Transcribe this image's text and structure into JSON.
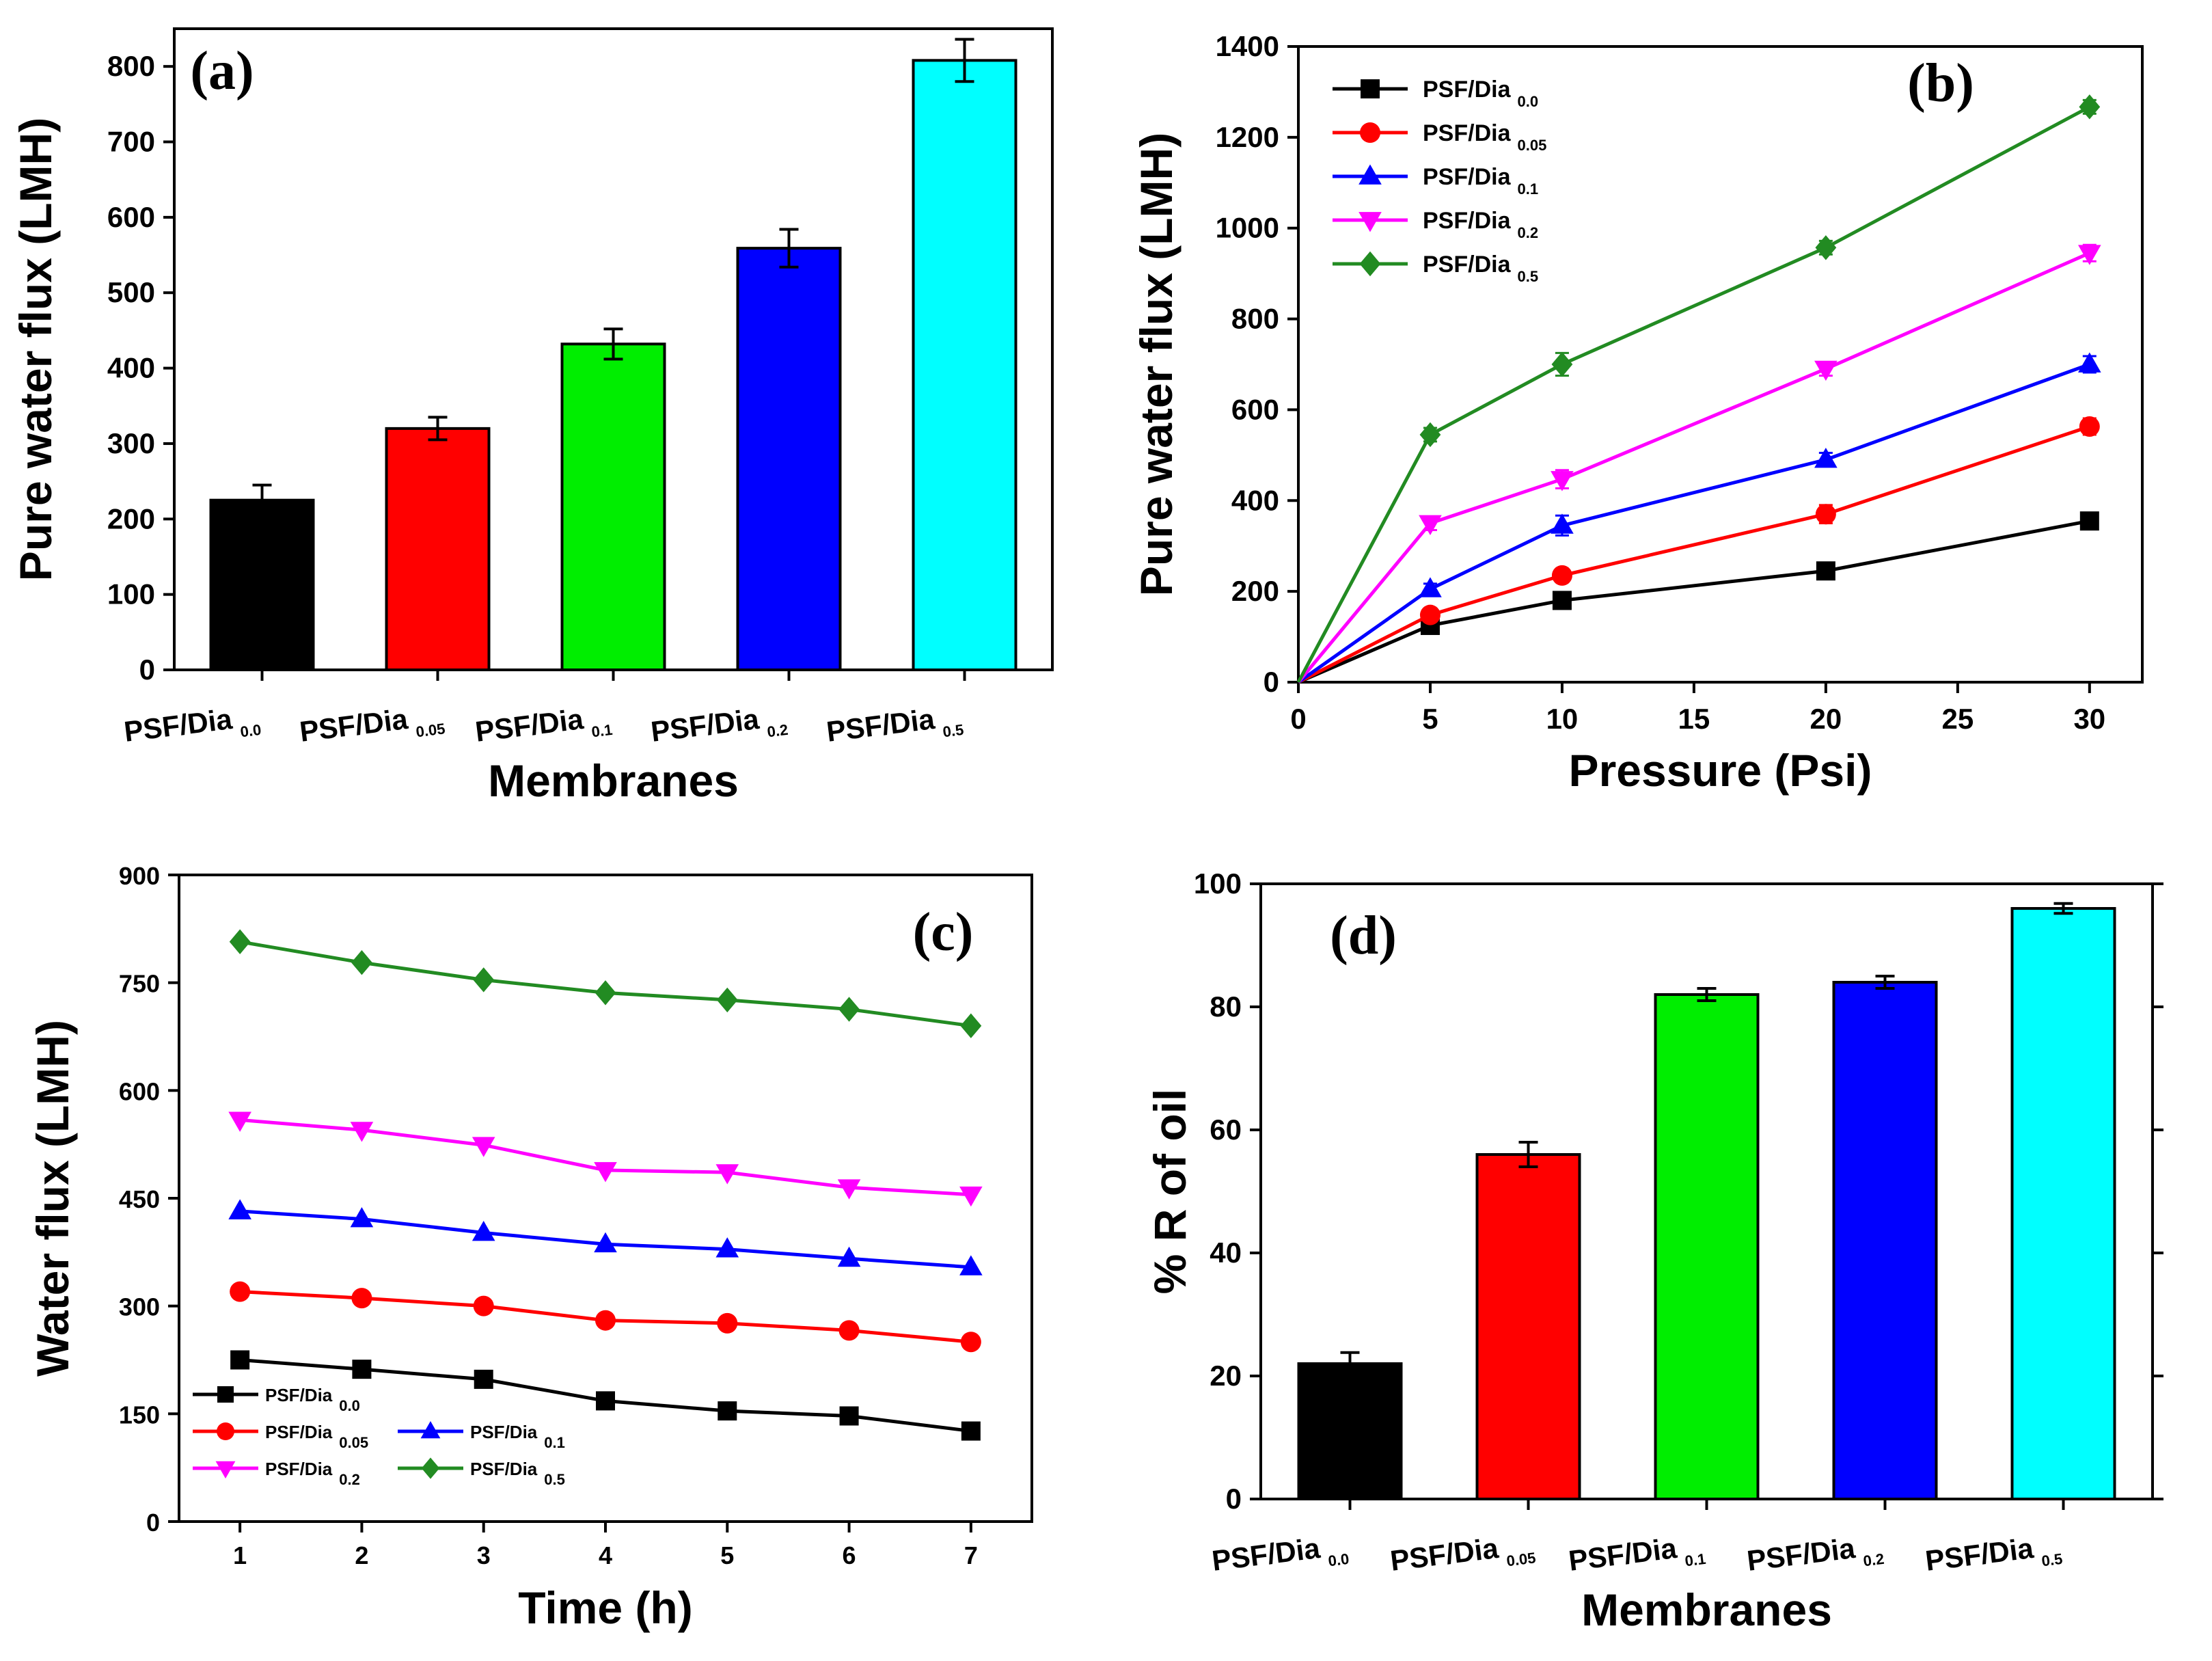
{
  "figure": {
    "panels": [
      "a",
      "b",
      "c",
      "d"
    ]
  },
  "chart_data": [
    {
      "id": "a",
      "type": "bar",
      "panel_label": "(a)",
      "title": "",
      "xlabel": "Membranes",
      "ylabel": "Pure water flux (LMH)",
      "ylim": [
        0,
        850
      ],
      "yticks": [
        0,
        100,
        200,
        300,
        400,
        500,
        600,
        700,
        800
      ],
      "categories": [
        {
          "main": "PSF/Dia",
          "sub": "0.0"
        },
        {
          "main": "PSF/Dia",
          "sub": "0.05"
        },
        {
          "main": "PSF/Dia",
          "sub": "0.1"
        },
        {
          "main": "PSF/Dia",
          "sub": "0.2"
        },
        {
          "main": "PSF/Dia",
          "sub": "0.5"
        }
      ],
      "values": [
        225,
        320,
        432,
        559,
        808
      ],
      "errors": [
        20,
        15,
        20,
        25,
        28
      ],
      "colors": [
        "#000000",
        "#ff0000",
        "#00ee00",
        "#0000ff",
        "#00ffff"
      ]
    },
    {
      "id": "b",
      "type": "line",
      "panel_label": "(b)",
      "xlabel": "Pressure (Psi)",
      "ylabel": "Pure water flux (LMH)",
      "xlim": [
        0,
        32
      ],
      "ylim": [
        0,
        1400
      ],
      "xticks": [
        0,
        5,
        10,
        15,
        20,
        25,
        30
      ],
      "yticks": [
        0,
        200,
        400,
        600,
        800,
        1000,
        1200,
        1400
      ],
      "x": [
        0,
        5,
        10,
        20,
        30
      ],
      "legend_position": "top-left",
      "series": [
        {
          "name": "PSF/Dia",
          "sub": "0.0",
          "color": "#000000",
          "marker": "square",
          "values": [
            0,
            125,
            180,
            245,
            355
          ],
          "errors": [
            0,
            10,
            12,
            12,
            15
          ]
        },
        {
          "name": "PSF/Dia",
          "sub": "0.05",
          "color": "#ff0000",
          "marker": "circle",
          "values": [
            0,
            148,
            235,
            370,
            563
          ],
          "errors": [
            0,
            10,
            15,
            20,
            18
          ]
        },
        {
          "name": "PSF/Dia",
          "sub": "0.1",
          "color": "#0000ff",
          "marker": "triangle",
          "values": [
            0,
            205,
            345,
            490,
            700
          ],
          "errors": [
            0,
            12,
            22,
            15,
            18
          ]
        },
        {
          "name": "PSF/Dia",
          "sub": "0.2",
          "color": "#ff00ff",
          "marker": "invtri",
          "values": [
            0,
            350,
            447,
            690,
            945
          ],
          "errors": [
            0,
            15,
            20,
            15,
            18
          ]
        },
        {
          "name": "PSF/Dia",
          "sub": "0.5",
          "color": "#228b22",
          "marker": "diamond",
          "values": [
            0,
            545,
            700,
            957,
            1267
          ],
          "errors": [
            0,
            15,
            25,
            15,
            15
          ]
        }
      ]
    },
    {
      "id": "c",
      "type": "line",
      "panel_label": "(c)",
      "xlabel": "Time (h)",
      "ylabel": "Water flux (LMH)",
      "xlim": [
        0.5,
        7.5
      ],
      "ylim": [
        0,
        900
      ],
      "xticks": [
        1,
        2,
        3,
        4,
        5,
        6,
        7
      ],
      "yticks": [
        0,
        150,
        300,
        450,
        600,
        750,
        900
      ],
      "x": [
        1,
        2,
        3,
        4,
        5,
        6,
        7
      ],
      "legend_position": "bottom-left",
      "series": [
        {
          "name": "PSF/Dia",
          "sub": "0.0",
          "color": "#000000",
          "marker": "square",
          "values": [
            225,
            212,
            198,
            168,
            154,
            147,
            126
          ]
        },
        {
          "name": "PSF/Dia",
          "sub": "0.05",
          "color": "#ff0000",
          "marker": "circle",
          "values": [
            320,
            311,
            300,
            280,
            276,
            266,
            250
          ]
        },
        {
          "name": "PSF/Dia",
          "sub": "0.1",
          "color": "#0000ff",
          "marker": "triangle",
          "values": [
            432,
            421,
            402,
            386,
            379,
            366,
            354
          ]
        },
        {
          "name": "PSF/Dia",
          "sub": "0.2",
          "color": "#ff00ff",
          "marker": "invtri",
          "values": [
            559,
            545,
            524,
            489,
            486,
            465,
            455
          ]
        },
        {
          "name": "PSF/Dia",
          "sub": "0.5",
          "color": "#228b22",
          "marker": "diamond",
          "values": [
            807,
            778,
            754,
            736,
            726,
            713,
            690
          ]
        }
      ]
    },
    {
      "id": "d",
      "type": "bar",
      "panel_label": "(d)",
      "xlabel": "Membranes",
      "ylabel": "% R of oil",
      "ylim": [
        0,
        100
      ],
      "yticks": [
        0,
        20,
        40,
        60,
        80,
        100
      ],
      "categories": [
        {
          "main": "PSF/Dia",
          "sub": "0.0"
        },
        {
          "main": "PSF/Dia",
          "sub": "0.05"
        },
        {
          "main": "PSF/Dia",
          "sub": "0.1"
        },
        {
          "main": "PSF/Dia",
          "sub": "0.2"
        },
        {
          "main": "PSF/Dia",
          "sub": "0.5"
        }
      ],
      "values": [
        22,
        56,
        82,
        84,
        96
      ],
      "errors": [
        1.8,
        2,
        1,
        1,
        0.8
      ],
      "colors": [
        "#000000",
        "#ff0000",
        "#00ee00",
        "#0000ff",
        "#00ffff"
      ]
    }
  ]
}
